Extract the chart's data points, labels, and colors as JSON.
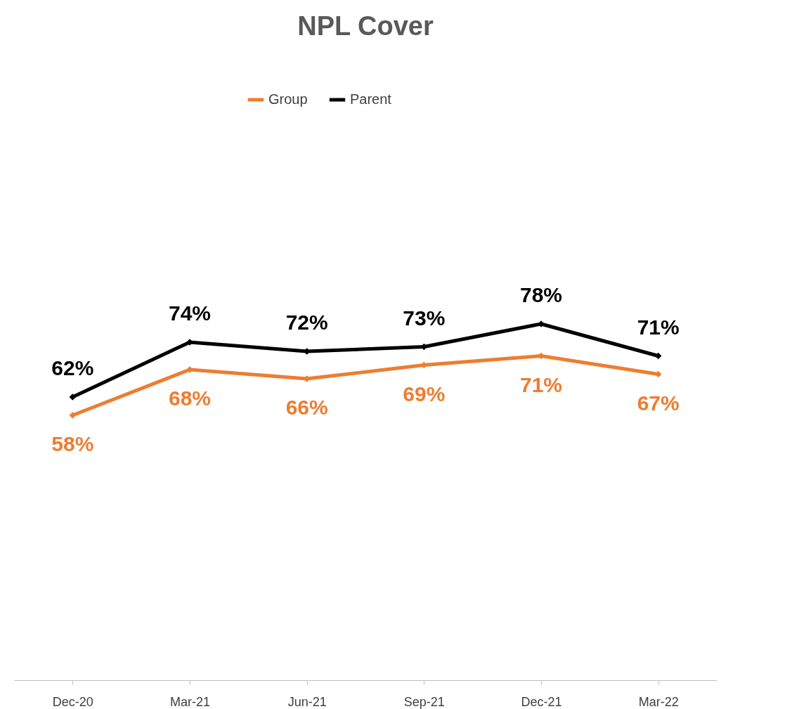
{
  "chart_data": {
    "type": "line",
    "title": "NPL Cover",
    "categories": [
      "Dec-20",
      "Mar-21",
      "Jun-21",
      "Sep-21",
      "Dec-21",
      "Mar-22"
    ],
    "series": [
      {
        "name": "Group",
        "color": "#ed7d31",
        "values": [
          58,
          68,
          66,
          69,
          71,
          67
        ],
        "value_labels": [
          "58%",
          "68%",
          "66%",
          "69%",
          "71%",
          "67%"
        ]
      },
      {
        "name": "Parent",
        "color": "#000000",
        "values": [
          62,
          74,
          72,
          73,
          78,
          71
        ],
        "value_labels": [
          "62%",
          "74%",
          "72%",
          "73%",
          "78%",
          "71%"
        ]
      }
    ],
    "legend": "top",
    "grid": false,
    "marker": "diamond",
    "line_style": "solid"
  }
}
